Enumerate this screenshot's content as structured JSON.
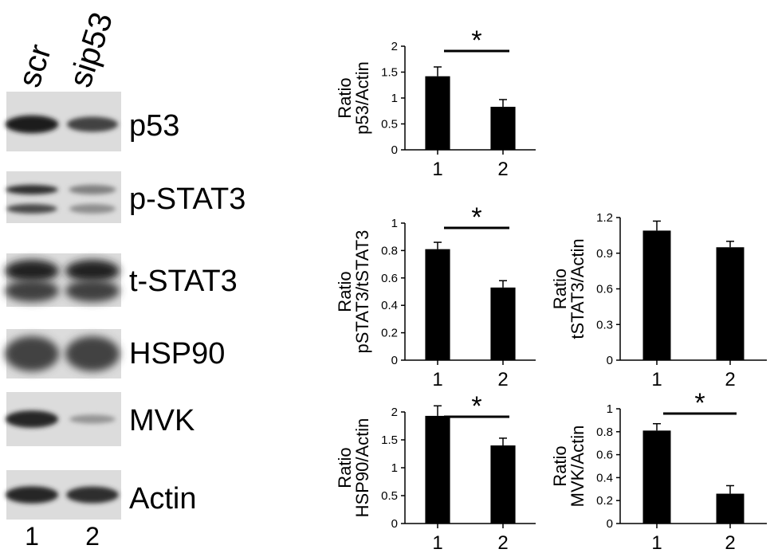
{
  "blot": {
    "lane_headers": [
      "scr",
      "sip53"
    ],
    "lane_numbers": [
      "1",
      "2"
    ],
    "bands": [
      {
        "label": "p53",
        "intensity": [
          0.92,
          0.75
        ]
      },
      {
        "label": "p-STAT3",
        "intensity": [
          0.85,
          0.45
        ]
      },
      {
        "label": "t-STAT3",
        "intensity": [
          0.9,
          0.9
        ]
      },
      {
        "label": "HSP90",
        "intensity": [
          0.75,
          0.75
        ]
      },
      {
        "label": "MVK",
        "intensity": [
          0.88,
          0.35
        ]
      },
      {
        "label": "Actin",
        "intensity": [
          0.88,
          0.85
        ]
      }
    ]
  },
  "chart_data": [
    {
      "type": "bar",
      "categories": [
        "1",
        "2"
      ],
      "values": [
        1.42,
        0.83
      ],
      "errors": [
        0.18,
        0.14
      ],
      "ylabel_lines": [
        "Ratio",
        "p53/Actin"
      ],
      "ylim": [
        0,
        2
      ],
      "yticks": [
        "0",
        "0.5",
        "1",
        "1.5",
        "2"
      ],
      "significance": "*"
    },
    {
      "type": "bar",
      "categories": [
        "1",
        "2"
      ],
      "values": [
        0.81,
        0.53
      ],
      "errors": [
        0.05,
        0.05
      ],
      "ylabel_lines": [
        "Ratio",
        "pSTAT3/tSTAT3"
      ],
      "ylim": [
        0,
        1
      ],
      "yticks": [
        "0",
        "0.2",
        "0.4",
        "0.6",
        "0.8",
        "1"
      ],
      "significance": "*"
    },
    {
      "type": "bar",
      "categories": [
        "1",
        "2"
      ],
      "values": [
        1.09,
        0.95
      ],
      "errors": [
        0.08,
        0.05
      ],
      "ylabel_lines": [
        "Ratio",
        "tSTAT3/Actin"
      ],
      "ylim": [
        0,
        1.2
      ],
      "yticks": [
        "0",
        "0.3",
        "0.6",
        "0.9",
        "1.2"
      ],
      "significance": ""
    },
    {
      "type": "bar",
      "categories": [
        "1",
        "2"
      ],
      "values": [
        1.93,
        1.4
      ],
      "errors": [
        0.18,
        0.13
      ],
      "ylabel_lines": [
        "Ratio",
        "HSP90/Actin"
      ],
      "ylim": [
        0,
        2
      ],
      "yticks": [
        "0",
        "0.5",
        "1",
        "1.5",
        "2"
      ],
      "significance": "*"
    },
    {
      "type": "bar",
      "categories": [
        "1",
        "2"
      ],
      "values": [
        0.81,
        0.26
      ],
      "errors": [
        0.06,
        0.07
      ],
      "ylabel_lines": [
        "Ratio",
        "MVK/Actin"
      ],
      "ylim": [
        0,
        1
      ],
      "yticks": [
        "0",
        "0.2",
        "0.4",
        "0.6",
        "0.8",
        "1"
      ],
      "significance": "*"
    }
  ]
}
